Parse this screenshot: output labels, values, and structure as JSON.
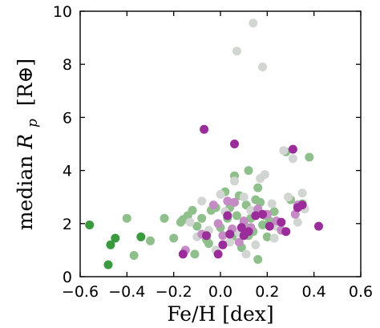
{
  "chart_data": {
    "type": "scatter",
    "title": "",
    "xlabel": "Fe/H [dex]",
    "ylabel": "median R_p [R⊕]",
    "ylabel_parts": {
      "prefix": "median ",
      "symbol": "R",
      "subscript": "p",
      "unit": "[R⊕]"
    },
    "xlim": [
      -0.6,
      0.6
    ],
    "ylim": [
      0,
      10
    ],
    "xticks": [
      "−0.6",
      "−0.4",
      "−0.2",
      "0.0",
      "0.2",
      "0.4",
      "0.6"
    ],
    "yticks": [
      "0",
      "2",
      "4",
      "6",
      "8",
      "10"
    ],
    "grid": false,
    "legend": "none",
    "colors": {
      "strong_green": "#3a9a3e",
      "light_green": "#8fbf8b",
      "pale_gray": "#d2d6d2",
      "light_purple": "#c48bc4",
      "strong_purple": "#9a2d9a"
    },
    "series": [
      {
        "color_key": "strong_green",
        "points": [
          [
            -0.56,
            1.95
          ],
          [
            -0.48,
            0.45
          ],
          [
            -0.47,
            1.2
          ],
          [
            -0.45,
            1.45
          ],
          [
            -0.34,
            1.5
          ]
        ]
      },
      {
        "color_key": "light_green",
        "points": [
          [
            -0.4,
            2.2
          ],
          [
            -0.37,
            0.8
          ],
          [
            -0.3,
            1.35
          ],
          [
            -0.24,
            2.2
          ],
          [
            -0.2,
            1.45
          ],
          [
            -0.17,
            2.05
          ],
          [
            -0.16,
            2.15
          ],
          [
            -0.14,
            2.3
          ],
          [
            -0.12,
            2.5
          ],
          [
            -0.1,
            1.9
          ],
          [
            -0.08,
            2.2
          ],
          [
            -0.06,
            1.4
          ],
          [
            -0.04,
            2.5
          ],
          [
            -0.02,
            2.6
          ],
          [
            0.0,
            1.85
          ],
          [
            0.02,
            3.2
          ],
          [
            0.03,
            2.2
          ],
          [
            0.04,
            2.6
          ],
          [
            0.05,
            1.5
          ],
          [
            0.06,
            3.8
          ],
          [
            0.07,
            2.3
          ],
          [
            0.08,
            3.05
          ],
          [
            0.09,
            1.1
          ],
          [
            0.1,
            2.0
          ],
          [
            0.11,
            2.7
          ],
          [
            0.12,
            4.0
          ],
          [
            0.13,
            2.2
          ],
          [
            0.14,
            1.7
          ],
          [
            0.15,
            2.9
          ],
          [
            0.16,
            3.35
          ],
          [
            0.17,
            2.8
          ],
          [
            0.18,
            1.95
          ],
          [
            0.19,
            2.3
          ],
          [
            0.2,
            1.5
          ],
          [
            0.21,
            2.1
          ],
          [
            0.23,
            2.45
          ],
          [
            0.25,
            2.0
          ],
          [
            0.28,
            4.7
          ],
          [
            0.3,
            2.9
          ],
          [
            0.35,
            2.75
          ],
          [
            0.38,
            4.5
          ],
          [
            0.16,
            0.65
          ],
          [
            -0.05,
            1.25
          ],
          [
            -0.11,
            0.85
          ],
          [
            0.12,
            1.55
          ]
        ]
      },
      {
        "color_key": "pale_gray",
        "points": [
          [
            0.14,
            9.55
          ],
          [
            0.07,
            8.5
          ],
          [
            0.18,
            7.9
          ],
          [
            -0.08,
            2.85
          ],
          [
            -0.05,
            1.75
          ],
          [
            -0.02,
            1.0
          ],
          [
            0.02,
            2.45
          ],
          [
            0.04,
            1.3
          ],
          [
            0.06,
            3.6
          ],
          [
            0.08,
            1.65
          ],
          [
            0.1,
            3.0
          ],
          [
            0.11,
            0.85
          ],
          [
            0.13,
            2.5
          ],
          [
            0.15,
            1.2
          ],
          [
            0.17,
            3.7
          ],
          [
            0.19,
            3.85
          ],
          [
            0.22,
            2.75
          ],
          [
            0.24,
            1.9
          ],
          [
            0.27,
            4.75
          ],
          [
            0.29,
            3.0
          ],
          [
            0.31,
            4.45
          ],
          [
            0.33,
            2.05
          ],
          [
            0.35,
            3.15
          ],
          [
            -0.13,
            2.05
          ],
          [
            -0.1,
            1.5
          ],
          [
            0.0,
            3.1
          ],
          [
            0.23,
            1.45
          ],
          [
            0.36,
            2.55
          ]
        ]
      },
      {
        "color_key": "light_purple",
        "points": [
          [
            -0.15,
            1.0
          ],
          [
            -0.08,
            1.6
          ],
          [
            -0.03,
            2.7
          ],
          [
            0.01,
            1.55
          ],
          [
            0.03,
            2.85
          ],
          [
            0.05,
            1.8
          ],
          [
            0.08,
            1.3
          ],
          [
            0.1,
            2.1
          ],
          [
            0.13,
            1.85
          ],
          [
            0.16,
            2.55
          ],
          [
            0.24,
            2.1
          ],
          [
            0.26,
            1.75
          ],
          [
            0.32,
            2.35
          ],
          [
            0.33,
            2.7
          ],
          [
            -0.01,
            2.0
          ],
          [
            0.06,
            2.8
          ],
          [
            0.2,
            2.35
          ]
        ]
      },
      {
        "color_key": "strong_purple",
        "points": [
          [
            -0.07,
            5.55
          ],
          [
            0.06,
            5.0
          ],
          [
            -0.16,
            0.85
          ],
          [
            -0.06,
            1.55
          ],
          [
            -0.01,
            0.85
          ],
          [
            0.03,
            2.3
          ],
          [
            0.04,
            1.6
          ],
          [
            0.09,
            1.85
          ],
          [
            0.1,
            1.55
          ],
          [
            0.12,
            1.7
          ],
          [
            0.15,
            2.3
          ],
          [
            0.18,
            2.35
          ],
          [
            0.21,
            1.9
          ],
          [
            0.28,
            1.7
          ],
          [
            0.31,
            4.8
          ],
          [
            0.33,
            2.6
          ],
          [
            0.35,
            2.7
          ],
          [
            0.42,
            1.9
          ],
          [
            0.01,
            1.2
          ],
          [
            0.26,
            2.05
          ]
        ]
      }
    ]
  }
}
